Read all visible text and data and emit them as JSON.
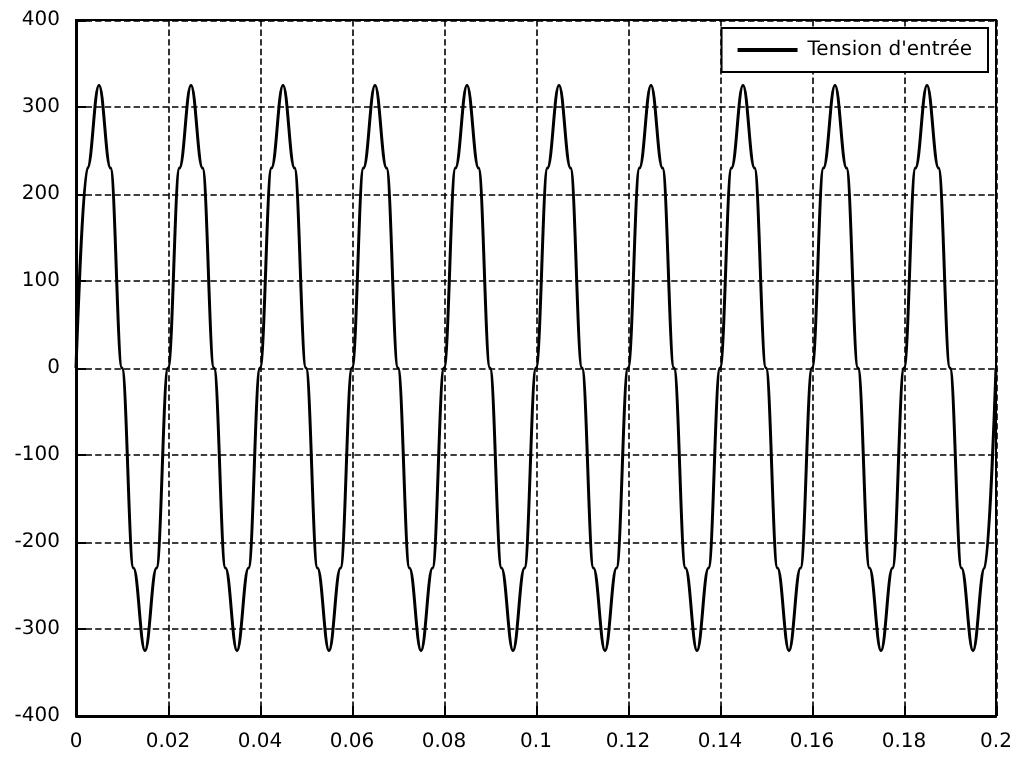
{
  "chart_data": {
    "type": "line",
    "x": [
      0,
      0.0025,
      0.005,
      0.0075,
      0.01,
      0.0125,
      0.015,
      0.0175,
      0.02,
      0.0225,
      0.025,
      0.0275,
      0.03,
      0.0325,
      0.035,
      0.0375,
      0.04,
      0.0425,
      0.045,
      0.0475,
      0.05,
      0.0525,
      0.055,
      0.0575,
      0.06,
      0.0625,
      0.065,
      0.0675,
      0.07,
      0.0725,
      0.075,
      0.0775,
      0.08,
      0.0825,
      0.085,
      0.0875,
      0.09,
      0.0925,
      0.095,
      0.0975,
      0.1,
      0.1025,
      0.105,
      0.1075,
      0.11,
      0.1125,
      0.115,
      0.1175,
      0.12,
      0.1225,
      0.125,
      0.1275,
      0.13,
      0.1325,
      0.135,
      0.1375,
      0.14,
      0.1425,
      0.145,
      0.1475,
      0.15,
      0.1525,
      0.155,
      0.1575,
      0.16,
      0.1625,
      0.165,
      0.1675,
      0.17,
      0.1725,
      0.175,
      0.1775,
      0.18,
      0.1825,
      0.185,
      0.1875,
      0.19,
      0.1925,
      0.195,
      0.1975,
      0.2
    ],
    "series": [
      {
        "name": "Tension d'entrée",
        "color": "#000000",
        "values": [
          0,
          230,
          325,
          230,
          0,
          -230,
          -325,
          -230,
          0,
          230,
          325,
          230,
          0,
          -230,
          -325,
          -230,
          0,
          230,
          325,
          230,
          0,
          -230,
          -325,
          -230,
          0,
          230,
          325,
          230,
          0,
          -230,
          -325,
          -230,
          0,
          230,
          325,
          230,
          0,
          -230,
          -325,
          -230,
          0,
          230,
          325,
          230,
          0,
          -230,
          -325,
          -230,
          0,
          230,
          325,
          230,
          0,
          -230,
          -325,
          -230,
          0,
          230,
          325,
          230,
          0,
          -230,
          -325,
          -230,
          0,
          230,
          325,
          230,
          0,
          -230,
          -325,
          -230,
          0,
          230,
          325,
          230,
          0,
          -230,
          -325,
          -230,
          0
        ]
      }
    ],
    "xlim": [
      0,
      0.2
    ],
    "xticks": [
      0,
      0.02,
      0.04,
      0.06,
      0.08,
      0.1,
      0.12,
      0.14,
      0.16,
      0.18,
      0.2
    ],
    "ylim": [
      -400,
      400
    ],
    "yticks": [
      -400,
      -300,
      -200,
      -100,
      0,
      100,
      200,
      300,
      400
    ],
    "grid": true,
    "legend": "top right",
    "marker": "none",
    "line_style": "solid"
  }
}
